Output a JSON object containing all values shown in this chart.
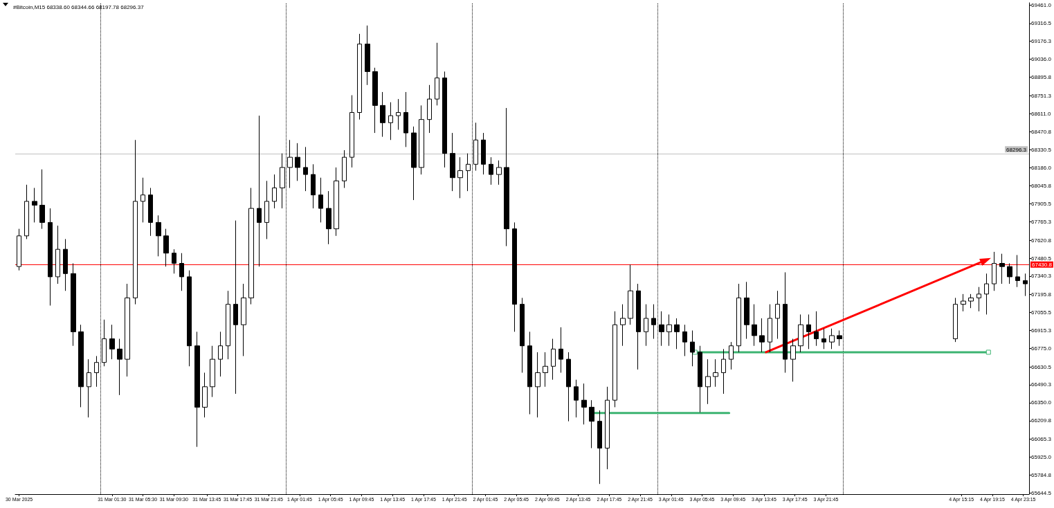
{
  "chart_data": {
    "type": "candlestick",
    "title": "#Bitcoin,M15 68338.60 68344.66 68197.78 68296.37",
    "color": "#000000",
    "x": [
      "2025-03-30T13:30",
      "2025-03-30T14:30",
      "2025-03-30T15:30",
      "2025-03-30T16:30",
      "2025-03-30T17:30",
      "2025-03-30T18:30",
      "2025-03-30T19:30",
      "2025-03-30T20:30",
      "2025-03-30T21:30",
      "2025-03-30T22:30",
      "2025-03-30T23:30",
      "2025-03-31T00:30",
      "2025-03-31T01:30",
      "2025-03-31T02:30",
      "2025-03-31T03:30",
      "2025-03-31T04:30",
      "2025-03-31T05:30",
      "2025-03-31T06:30",
      "2025-03-31T07:30",
      "2025-03-31T08:30",
      "2025-03-31T09:30",
      "2025-03-31T10:30",
      "2025-03-31T11:30",
      "2025-03-31T12:30",
      "2025-03-31T13:30",
      "2025-03-31T14:30",
      "2025-03-31T15:30",
      "2025-03-31T16:30",
      "2025-03-31T17:30",
      "2025-03-31T18:30",
      "2025-03-31T19:30",
      "2025-03-31T20:30",
      "2025-03-31T21:30",
      "2025-03-31T22:30",
      "2025-03-31T23:30",
      "2025-04-01T00:30",
      "2025-04-01T01:30",
      "2025-04-01T02:30",
      "2025-04-01T03:30",
      "2025-04-01T04:30",
      "2025-04-01T05:30",
      "2025-04-01T06:30",
      "2025-04-01T07:30",
      "2025-04-01T08:30",
      "2025-04-01T09:30",
      "2025-04-01T10:30",
      "2025-04-01T11:30",
      "2025-04-01T12:30",
      "2025-04-01T13:30",
      "2025-04-01T14:30",
      "2025-04-01T15:30",
      "2025-04-01T16:30",
      "2025-04-01T17:30",
      "2025-04-01T18:30",
      "2025-04-01T19:30",
      "2025-04-01T20:30",
      "2025-04-01T21:30",
      "2025-04-01T22:30",
      "2025-04-01T23:30",
      "2025-04-02T00:30",
      "2025-04-02T01:30",
      "2025-04-02T02:30",
      "2025-04-02T03:30",
      "2025-04-02T04:30",
      "2025-04-02T05:30",
      "2025-04-02T06:30",
      "2025-04-02T07:30",
      "2025-04-02T08:30",
      "2025-04-02T09:30",
      "2025-04-02T10:30",
      "2025-04-02T11:30",
      "2025-04-02T12:30",
      "2025-04-02T13:30",
      "2025-04-02T14:30",
      "2025-04-02T15:30",
      "2025-04-02T16:30",
      "2025-04-02T17:30",
      "2025-04-02T18:30",
      "2025-04-02T19:30",
      "2025-04-02T20:30",
      "2025-04-02T21:30",
      "2025-04-02T22:30",
      "2025-04-02T23:30",
      "2025-04-03T00:30",
      "2025-04-03T01:30",
      "2025-04-03T02:30",
      "2025-04-03T03:30",
      "2025-04-03T04:30",
      "2025-04-03T05:30",
      "2025-04-03T06:30",
      "2025-04-03T07:30",
      "2025-04-03T08:30",
      "2025-04-03T09:30",
      "2025-04-03T10:30",
      "2025-04-03T11:30",
      "2025-04-03T12:30",
      "2025-04-03T13:30",
      "2025-04-03T14:30",
      "2025-04-03T15:30",
      "2025-04-03T16:30",
      "2025-04-03T17:30",
      "2025-04-03T18:30",
      "2025-04-03T19:30",
      "2025-04-03T20:30",
      "2025-04-03T21:30",
      "2025-04-03T22:30",
      "2025-04-03T23:30",
      "2025-04-04T14:30",
      "2025-04-04T15:30",
      "2025-04-04T16:30",
      "2025-04-04T17:30",
      "2025-04-04T18:30",
      "2025-04-04T19:30",
      "2025-04-04T20:30",
      "2025-04-04T21:30",
      "2025-04-04T22:30",
      "2025-04-04T23:30"
    ],
    "ohlc": [
      [
        67415,
        67710,
        67385,
        67655
      ],
      [
        67655,
        68055,
        67630,
        67925
      ],
      [
        67925,
        68030,
        67760,
        67895
      ],
      [
        67895,
        68175,
        67710,
        67760
      ],
      [
        67760,
        67870,
        67110,
        67335
      ],
      [
        67335,
        67735,
        67280,
        67550
      ],
      [
        67550,
        67630,
        67225,
        67360
      ],
      [
        67360,
        67440,
        66795,
        66905
      ],
      [
        66905,
        66960,
        66315,
        66475
      ],
      [
        66475,
        66690,
        66235,
        66585
      ],
      [
        66585,
        66715,
        66475,
        66665
      ],
      [
        66665,
        67000,
        66635,
        66850
      ],
      [
        66850,
        66960,
        66690,
        66770
      ],
      [
        66770,
        66850,
        66410,
        66690
      ],
      [
        66690,
        67280,
        66555,
        67170
      ],
      [
        67170,
        68405,
        67120,
        67925
      ],
      [
        67925,
        68110,
        67760,
        67975
      ],
      [
        67975,
        68030,
        67655,
        67760
      ],
      [
        67760,
        67815,
        67495,
        67655
      ],
      [
        67655,
        67710,
        67415,
        67520
      ],
      [
        67520,
        67550,
        67360,
        67440
      ],
      [
        67440,
        67520,
        67225,
        67335
      ],
      [
        67335,
        67385,
        66635,
        66795
      ],
      [
        66795,
        66905,
        66005,
        66315
      ],
      [
        66315,
        66585,
        66235,
        66475
      ],
      [
        66475,
        66795,
        66395,
        66690
      ],
      [
        66690,
        66905,
        66555,
        66795
      ],
      [
        66795,
        67225,
        66690,
        67120
      ],
      [
        67120,
        67775,
        66420,
        66960
      ],
      [
        66960,
        67280,
        66715,
        67170
      ],
      [
        67170,
        68030,
        67120,
        67870
      ],
      [
        67870,
        68595,
        67415,
        67760
      ],
      [
        67760,
        68085,
        67630,
        67925
      ],
      [
        67925,
        68135,
        67870,
        68030
      ],
      [
        68030,
        68300,
        67870,
        68190
      ],
      [
        68190,
        68405,
        68030,
        68270
      ],
      [
        68270,
        68380,
        68085,
        68190
      ],
      [
        68190,
        68350,
        68005,
        68135
      ],
      [
        68135,
        68215,
        67870,
        67975
      ],
      [
        67975,
        68110,
        67760,
        67870
      ],
      [
        67870,
        68005,
        67590,
        67710
      ],
      [
        67710,
        68190,
        67655,
        68085
      ],
      [
        68085,
        68325,
        68030,
        68270
      ],
      [
        68270,
        68755,
        68190,
        68620
      ],
      [
        68620,
        69235,
        68565,
        69155
      ],
      [
        69155,
        69300,
        68835,
        68940
      ],
      [
        68940,
        68970,
        68460,
        68675
      ],
      [
        68675,
        68780,
        68430,
        68540
      ],
      [
        68540,
        68700,
        68405,
        68595
      ],
      [
        68595,
        68725,
        68485,
        68620
      ],
      [
        68620,
        68780,
        68350,
        68460
      ],
      [
        68460,
        68510,
        67935,
        68190
      ],
      [
        68190,
        68675,
        68135,
        68565
      ],
      [
        68565,
        68835,
        68460,
        68725
      ],
      [
        68725,
        69165,
        68675,
        68890
      ],
      [
        68890,
        68940,
        68190,
        68300
      ],
      [
        68300,
        68460,
        68005,
        68110
      ],
      [
        68110,
        68270,
        67950,
        68165
      ],
      [
        68165,
        68300,
        68005,
        68215
      ],
      [
        68215,
        68540,
        68165,
        68405
      ],
      [
        68405,
        68460,
        68135,
        68215
      ],
      [
        68215,
        68270,
        68055,
        68135
      ],
      [
        68135,
        68245,
        68055,
        68190
      ],
      [
        68190,
        68655,
        67575,
        67710
      ],
      [
        67710,
        67760,
        66905,
        67120
      ],
      [
        67120,
        67170,
        66585,
        66795
      ],
      [
        66795,
        66905,
        66260,
        66475
      ],
      [
        66475,
        66745,
        66235,
        66585
      ],
      [
        66585,
        66745,
        66475,
        66635
      ],
      [
        66635,
        66850,
        66530,
        66770
      ],
      [
        66770,
        66940,
        66585,
        66690
      ],
      [
        66690,
        66745,
        66205,
        66475
      ],
      [
        66475,
        66530,
        66235,
        66370
      ],
      [
        66370,
        66500,
        66180,
        66315
      ],
      [
        66315,
        66370,
        65995,
        66205
      ],
      [
        66205,
        66290,
        65715,
        65995
      ],
      [
        65995,
        66475,
        65830,
        66370
      ],
      [
        66370,
        67065,
        66315,
        66960
      ],
      [
        66960,
        67120,
        66795,
        67010
      ],
      [
        67010,
        67430,
        66960,
        67225
      ],
      [
        67225,
        67280,
        66610,
        66905
      ],
      [
        66905,
        67120,
        66795,
        67010
      ],
      [
        67010,
        67120,
        66850,
        66960
      ],
      [
        66960,
        67065,
        66795,
        66905
      ],
      [
        66905,
        67040,
        66795,
        66960
      ],
      [
        66960,
        67010,
        66770,
        66905
      ],
      [
        66905,
        66960,
        66715,
        66825
      ],
      [
        66825,
        66915,
        66635,
        66745
      ],
      [
        66745,
        66795,
        66275,
        66475
      ],
      [
        66475,
        66690,
        66340,
        66555
      ],
      [
        66555,
        66690,
        66475,
        66585
      ],
      [
        66585,
        66770,
        66420,
        66690
      ],
      [
        66690,
        66825,
        66610,
        66795
      ],
      [
        66795,
        67280,
        66745,
        67170
      ],
      [
        67170,
        67295,
        66850,
        66960
      ],
      [
        66960,
        67120,
        66795,
        66875
      ],
      [
        66875,
        67010,
        66745,
        66825
      ],
      [
        66825,
        67120,
        66745,
        67010
      ],
      [
        67010,
        67225,
        66850,
        67120
      ],
      [
        67120,
        67370,
        66585,
        66690
      ],
      [
        66690,
        66850,
        66515,
        66795
      ],
      [
        66795,
        67040,
        66745,
        66960
      ],
      [
        66960,
        67040,
        66770,
        66905
      ],
      [
        66905,
        67065,
        66795,
        66850
      ],
      [
        66850,
        66930,
        66770,
        66825
      ],
      [
        66825,
        66930,
        66770,
        66875
      ],
      [
        66875,
        66915,
        66795,
        66850
      ],
      [
        66850,
        67170,
        66825,
        67120
      ],
      [
        67120,
        67200,
        67065,
        67145
      ],
      [
        67145,
        67200,
        67090,
        67170
      ],
      [
        67170,
        67255,
        67065,
        67200
      ],
      [
        67200,
        67360,
        67040,
        67280
      ],
      [
        67280,
        67530,
        67225,
        67440
      ],
      [
        67440,
        67515,
        67280,
        67415
      ],
      [
        67415,
        67440,
        67280,
        67335
      ],
      [
        67335,
        67505,
        67255,
        67305
      ],
      [
        67305,
        67360,
        67185,
        67280
      ]
    ],
    "xlim": [
      "2025-03-30T13:00",
      "2025-04-05T00:00"
    ],
    "xticks": [
      {
        "value": "2025-03-30T13:30",
        "label": "30 Mar 2025"
      },
      {
        "value": "2025-03-31T01:30",
        "label": "31 Mar 01:30"
      },
      {
        "value": "2025-03-31T05:30",
        "label": "31 Mar 05:30"
      },
      {
        "value": "2025-03-31T09:30",
        "label": "31 Mar 09:30"
      },
      {
        "value": "2025-03-31T13:45",
        "label": "31 Mar 13:45"
      },
      {
        "value": "2025-03-31T17:45",
        "label": "31 Mar 17:45"
      },
      {
        "value": "2025-03-31T21:45",
        "label": "31 Mar 21:45"
      },
      {
        "value": "2025-04-01T01:45",
        "label": "1 Apr 01:45"
      },
      {
        "value": "2025-04-01T05:45",
        "label": "1 Apr 05:45"
      },
      {
        "value": "2025-04-01T09:45",
        "label": "1 Apr 09:45"
      },
      {
        "value": "2025-04-01T13:45",
        "label": "1 Apr 13:45"
      },
      {
        "value": "2025-04-01T17:45",
        "label": "1 Apr 17:45"
      },
      {
        "value": "2025-04-01T21:45",
        "label": "1 Apr 21:45"
      },
      {
        "value": "2025-04-02T01:45",
        "label": "2 Apr 01:45"
      },
      {
        "value": "2025-04-02T05:45",
        "label": "2 Apr 05:45"
      },
      {
        "value": "2025-04-02T09:45",
        "label": "2 Apr 09:45"
      },
      {
        "value": "2025-04-02T13:45",
        "label": "2 Apr 13:45"
      },
      {
        "value": "2025-04-02T17:45",
        "label": "2 Apr 17:45"
      },
      {
        "value": "2025-04-02T21:45",
        "label": "2 Apr 21:45"
      },
      {
        "value": "2025-04-03T01:45",
        "label": "3 Apr 01:45"
      },
      {
        "value": "2025-04-03T05:45",
        "label": "3 Apr 05:45"
      },
      {
        "value": "2025-04-03T09:45",
        "label": "3 Apr 09:45"
      },
      {
        "value": "2025-04-03T13:45",
        "label": "3 Apr 13:45"
      },
      {
        "value": "2025-04-03T17:45",
        "label": "3 Apr 17:45"
      },
      {
        "value": "2025-04-03T21:45",
        "label": "3 Apr 21:45"
      },
      {
        "value": "2025-04-04T15:15",
        "label": "4 Apr 15:15"
      },
      {
        "value": "2025-04-04T19:15",
        "label": "4 Apr 19:15"
      },
      {
        "value": "2025-04-04T23:15",
        "label": "4 Apr 23:15"
      }
    ],
    "ylim": [
      65635,
      69478
    ],
    "yticks": [
      {
        "value": 69461,
        "label": "69461.0"
      },
      69316.5,
      69176.3,
      {
        "value": 69036,
        "label": "69036.0"
      },
      68895.8,
      68751.3,
      {
        "value": 68611,
        "label": "68611.0"
      },
      68470.8,
      68330.5,
      {
        "value": 68186,
        "label": "68186.0"
      },
      68045.8,
      67905.5,
      67765.3,
      67620.8,
      67480.5,
      67340.3,
      67195.8,
      67055.5,
      66915.3,
      {
        "value": 66775,
        "label": "66775.0"
      },
      66630.5,
      66490.3,
      {
        "value": 66350,
        "label": "66350.0"
      },
      66209.8,
      66065.3,
      {
        "value": 65925,
        "label": "65925.0"
      },
      65784.8,
      65644.5
    ],
    "ref_lines": [
      {
        "axis": "y",
        "value": 67430.8,
        "label": "67430.8",
        "color": "#ff0000"
      },
      {
        "axis": "y",
        "value": 68296.3,
        "label": "68296.3",
        "color": "#c0c0c0"
      },
      {
        "axis": "x",
        "value": "2025-03-31T00:00",
        "color": "#000000",
        "line_style": "dotted"
      },
      {
        "axis": "x",
        "value": "2025-04-01T00:00",
        "color": "#000000",
        "line_style": "dotted"
      },
      {
        "axis": "x",
        "value": "2025-04-02T00:00",
        "color": "#000000",
        "line_style": "dotted"
      },
      {
        "axis": "x",
        "value": "2025-04-03T00:00",
        "color": "#000000",
        "line_style": "dotted"
      },
      {
        "axis": "x",
        "value": "2025-04-04T00:00",
        "color": "#000000",
        "line_style": "dotted"
      }
    ],
    "series": [
      {
        "type": "line",
        "color": "#3cb371",
        "x": [
          "2025-04-02T15:50",
          "2025-04-03T09:15"
        ],
        "values": [
          66270,
          66270
        ]
      },
      {
        "type": "line",
        "color": "#3cb371",
        "marker": "square",
        "x": [
          "2025-04-03T04:50",
          "2025-04-04T18:45"
        ],
        "values": [
          66745,
          66745
        ]
      },
      {
        "type": "line",
        "color": "#ff0000",
        "marker": "triangle",
        "x": [
          "2025-04-03T14:00",
          "2025-04-04T18:25"
        ],
        "values": [
          66745,
          67465
        ]
      }
    ]
  }
}
